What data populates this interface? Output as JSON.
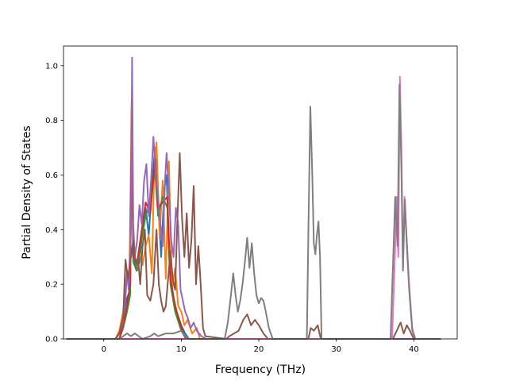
{
  "chart_data": {
    "type": "line",
    "xlabel": "Frequency (THz)",
    "ylabel": "Partial Density of States",
    "xlim": [
      -5.2,
      45.6
    ],
    "ylim": [
      0,
      1.072
    ],
    "xticks": [
      0,
      10,
      20,
      30,
      40
    ],
    "yticks": [
      0.0,
      0.2,
      0.4,
      0.6,
      0.8,
      1.0
    ],
    "xtick_labels": [
      "0",
      "10",
      "20",
      "30",
      "40"
    ],
    "ytick_labels": [
      "0.0",
      "0.2",
      "0.4",
      "0.6",
      "0.8",
      "1.0"
    ],
    "grid": false,
    "legend": "none",
    "series": [
      {
        "color": "#1f77b4",
        "points": [
          [
            -4.8,
            0
          ],
          [
            1.5,
            0
          ],
          [
            2.0,
            0.02
          ],
          [
            2.5,
            0.08
          ],
          [
            3.0,
            0.15
          ],
          [
            3.4,
            0.18
          ],
          [
            3.6,
            0.86
          ],
          [
            3.8,
            0.3
          ],
          [
            4.2,
            0.25
          ],
          [
            4.6,
            0.28
          ],
          [
            5.0,
            0.4
          ],
          [
            5.4,
            0.48
          ],
          [
            5.8,
            0.38
          ],
          [
            6.2,
            0.55
          ],
          [
            6.6,
            0.7
          ],
          [
            7.0,
            0.5
          ],
          [
            7.4,
            0.3
          ],
          [
            7.8,
            0.55
          ],
          [
            8.1,
            0.6
          ],
          [
            8.5,
            0.25
          ],
          [
            9.0,
            0.15
          ],
          [
            9.4,
            0.1
          ],
          [
            10.0,
            0.05
          ],
          [
            10.5,
            0.02
          ],
          [
            11.0,
            0.0
          ],
          [
            43.5,
            0
          ]
        ]
      },
      {
        "color": "#ff7f0e",
        "points": [
          [
            -4.8,
            0
          ],
          [
            1.5,
            0
          ],
          [
            2.0,
            0.03
          ],
          [
            2.5,
            0.1
          ],
          [
            3.0,
            0.24
          ],
          [
            3.3,
            0.22
          ],
          [
            3.6,
            0.88
          ],
          [
            3.8,
            0.32
          ],
          [
            4.2,
            0.28
          ],
          [
            4.6,
            0.32
          ],
          [
            5.0,
            0.27
          ],
          [
            5.4,
            0.34
          ],
          [
            5.8,
            0.38
          ],
          [
            6.2,
            0.24
          ],
          [
            6.5,
            0.62
          ],
          [
            6.8,
            0.72
          ],
          [
            7.2,
            0.38
          ],
          [
            7.6,
            0.58
          ],
          [
            8.0,
            0.22
          ],
          [
            8.4,
            0.65
          ],
          [
            8.8,
            0.18
          ],
          [
            9.2,
            0.26
          ],
          [
            9.6,
            0.12
          ],
          [
            10.0,
            0.1
          ],
          [
            10.4,
            0.05
          ],
          [
            10.8,
            0.07
          ],
          [
            11.4,
            0.02
          ],
          [
            12.0,
            0.04
          ],
          [
            12.4,
            0.0
          ],
          [
            43.5,
            0
          ]
        ]
      },
      {
        "color": "#2ca02c",
        "points": [
          [
            -4.8,
            0
          ],
          [
            2.0,
            0
          ],
          [
            2.5,
            0.04
          ],
          [
            3.0,
            0.1
          ],
          [
            3.4,
            0.16
          ],
          [
            3.6,
            0.8
          ],
          [
            3.8,
            0.28
          ],
          [
            4.3,
            0.25
          ],
          [
            4.8,
            0.35
          ],
          [
            5.4,
            0.45
          ],
          [
            6.0,
            0.5
          ],
          [
            6.6,
            0.62
          ],
          [
            7.0,
            0.45
          ],
          [
            7.6,
            0.52
          ],
          [
            8.2,
            0.48
          ],
          [
            8.6,
            0.2
          ],
          [
            9.2,
            0.1
          ],
          [
            10.0,
            0.03
          ],
          [
            10.6,
            0.0
          ],
          [
            43.5,
            0
          ]
        ]
      },
      {
        "color": "#d62728",
        "points": [
          [
            -4.8,
            0
          ],
          [
            2.0,
            0
          ],
          [
            2.5,
            0.05
          ],
          [
            3.0,
            0.12
          ],
          [
            3.4,
            0.2
          ],
          [
            3.6,
            0.84
          ],
          [
            3.8,
            0.3
          ],
          [
            4.3,
            0.28
          ],
          [
            4.8,
            0.38
          ],
          [
            5.4,
            0.5
          ],
          [
            6.0,
            0.46
          ],
          [
            6.6,
            0.66
          ],
          [
            7.0,
            0.48
          ],
          [
            7.6,
            0.5
          ],
          [
            8.2,
            0.52
          ],
          [
            8.6,
            0.22
          ],
          [
            9.2,
            0.12
          ],
          [
            10.0,
            0.04
          ],
          [
            10.6,
            0.0
          ],
          [
            43.5,
            0
          ]
        ]
      },
      {
        "color": "#9467bd",
        "points": [
          [
            -4.8,
            0
          ],
          [
            1.5,
            0
          ],
          [
            2.0,
            0.02
          ],
          [
            2.4,
            0.05
          ],
          [
            2.8,
            0.15
          ],
          [
            3.0,
            0.25
          ],
          [
            3.2,
            0.18
          ],
          [
            3.5,
            0.4
          ],
          [
            3.65,
            1.03
          ],
          [
            3.8,
            0.42
          ],
          [
            4.0,
            0.3
          ],
          [
            4.3,
            0.36
          ],
          [
            4.6,
            0.49
          ],
          [
            4.9,
            0.42
          ],
          [
            5.2,
            0.58
          ],
          [
            5.5,
            0.64
          ],
          [
            5.8,
            0.45
          ],
          [
            6.1,
            0.58
          ],
          [
            6.4,
            0.74
          ],
          [
            6.7,
            0.6
          ],
          [
            7.0,
            0.52
          ],
          [
            7.3,
            0.42
          ],
          [
            7.6,
            0.34
          ],
          [
            7.9,
            0.58
          ],
          [
            8.1,
            0.68
          ],
          [
            8.4,
            0.54
          ],
          [
            8.7,
            0.36
          ],
          [
            9.0,
            0.3
          ],
          [
            9.3,
            0.48
          ],
          [
            9.6,
            0.42
          ],
          [
            9.9,
            0.18
          ],
          [
            10.2,
            0.14
          ],
          [
            10.5,
            0.1
          ],
          [
            10.8,
            0.08
          ],
          [
            11.2,
            0.04
          ],
          [
            11.6,
            0.06
          ],
          [
            12.0,
            0.03
          ],
          [
            12.6,
            0.01
          ],
          [
            13.2,
            0.0
          ],
          [
            43.5,
            0
          ]
        ]
      },
      {
        "color": "#8c564b",
        "points": [
          [
            -4.8,
            0
          ],
          [
            1.5,
            0
          ],
          [
            2.0,
            0.02
          ],
          [
            2.5,
            0.08
          ],
          [
            2.8,
            0.29
          ],
          [
            3.1,
            0.22
          ],
          [
            3.5,
            0.3
          ],
          [
            3.8,
            0.36
          ],
          [
            4.1,
            0.26
          ],
          [
            4.4,
            0.3
          ],
          [
            4.7,
            0.2
          ],
          [
            5.0,
            0.34
          ],
          [
            5.3,
            0.4
          ],
          [
            5.6,
            0.16
          ],
          [
            6.0,
            0.14
          ],
          [
            6.4,
            0.2
          ],
          [
            6.8,
            0.4
          ],
          [
            7.1,
            0.2
          ],
          [
            7.4,
            0.14
          ],
          [
            7.7,
            0.1
          ],
          [
            8.0,
            0.12
          ],
          [
            8.3,
            0.22
          ],
          [
            8.6,
            0.32
          ],
          [
            8.9,
            0.22
          ],
          [
            9.2,
            0.18
          ],
          [
            9.5,
            0.44
          ],
          [
            9.8,
            0.68
          ],
          [
            10.1,
            0.44
          ],
          [
            10.4,
            0.3
          ],
          [
            10.7,
            0.46
          ],
          [
            11.0,
            0.26
          ],
          [
            11.3,
            0.36
          ],
          [
            11.6,
            0.56
          ],
          [
            11.9,
            0.2
          ],
          [
            12.2,
            0.34
          ],
          [
            12.5,
            0.2
          ],
          [
            12.8,
            0.04
          ],
          [
            13.1,
            0.01
          ],
          [
            15.8,
            0.0
          ],
          [
            16.2,
            0.01
          ],
          [
            16.8,
            0.02
          ],
          [
            17.4,
            0.03
          ],
          [
            18.0,
            0.07
          ],
          [
            18.5,
            0.09
          ],
          [
            19.0,
            0.05
          ],
          [
            19.5,
            0.07
          ],
          [
            20.0,
            0.05
          ],
          [
            20.6,
            0.02
          ],
          [
            21.2,
            0.0
          ],
          [
            26.4,
            0.0
          ],
          [
            26.7,
            0.04
          ],
          [
            27.1,
            0.03
          ],
          [
            27.6,
            0.05
          ],
          [
            28.0,
            0.0
          ],
          [
            37.3,
            0.0
          ],
          [
            37.8,
            0.03
          ],
          [
            38.3,
            0.06
          ],
          [
            38.7,
            0.02
          ],
          [
            39.1,
            0.05
          ],
          [
            39.5,
            0.03
          ],
          [
            40.0,
            0.0
          ],
          [
            43.5,
            0
          ]
        ]
      },
      {
        "color": "#e377c2",
        "points": [
          [
            -4.8,
            0
          ],
          [
            37.2,
            0
          ],
          [
            37.5,
            0.25
          ],
          [
            37.8,
            0.52
          ],
          [
            38.0,
            0.3
          ],
          [
            38.2,
            0.96
          ],
          [
            38.4,
            0.7
          ],
          [
            38.6,
            0.26
          ],
          [
            38.8,
            0.52
          ],
          [
            39.1,
            0.36
          ],
          [
            39.4,
            0.2
          ],
          [
            39.8,
            0.04
          ],
          [
            40.2,
            0.0
          ],
          [
            43.5,
            0
          ]
        ]
      },
      {
        "color": "#7f7f7f",
        "points": [
          [
            -4.8,
            0
          ],
          [
            2.0,
            0
          ],
          [
            2.5,
            0.01
          ],
          [
            3.0,
            0.02
          ],
          [
            3.5,
            0.01
          ],
          [
            4.0,
            0.02
          ],
          [
            4.5,
            0.01
          ],
          [
            5.0,
            0.0
          ],
          [
            6.0,
            0.01
          ],
          [
            6.5,
            0.02
          ],
          [
            7.0,
            0.01
          ],
          [
            8.0,
            0.02
          ],
          [
            9.0,
            0.02
          ],
          [
            10.0,
            0.03
          ],
          [
            10.5,
            0.01
          ],
          [
            11.0,
            0.0
          ],
          [
            15.6,
            0.0
          ],
          [
            16.0,
            0.06
          ],
          [
            16.4,
            0.16
          ],
          [
            16.7,
            0.24
          ],
          [
            17.0,
            0.16
          ],
          [
            17.3,
            0.1
          ],
          [
            17.6,
            0.14
          ],
          [
            17.9,
            0.2
          ],
          [
            18.2,
            0.28
          ],
          [
            18.5,
            0.37
          ],
          [
            18.8,
            0.26
          ],
          [
            19.1,
            0.35
          ],
          [
            19.4,
            0.24
          ],
          [
            19.7,
            0.16
          ],
          [
            20.0,
            0.13
          ],
          [
            20.3,
            0.15
          ],
          [
            20.6,
            0.14
          ],
          [
            20.9,
            0.1
          ],
          [
            21.3,
            0.04
          ],
          [
            21.8,
            0.0
          ],
          [
            26.2,
            0.0
          ],
          [
            26.4,
            0.4
          ],
          [
            26.65,
            0.85
          ],
          [
            26.9,
            0.6
          ],
          [
            27.1,
            0.35
          ],
          [
            27.3,
            0.31
          ],
          [
            27.5,
            0.38
          ],
          [
            27.7,
            0.43
          ],
          [
            27.9,
            0.3
          ],
          [
            28.1,
            0.0
          ],
          [
            37.0,
            0.0
          ],
          [
            37.3,
            0.26
          ],
          [
            37.6,
            0.52
          ],
          [
            37.9,
            0.34
          ],
          [
            38.15,
            0.93
          ],
          [
            38.4,
            0.62
          ],
          [
            38.6,
            0.25
          ],
          [
            38.85,
            0.51
          ],
          [
            39.1,
            0.34
          ],
          [
            39.4,
            0.18
          ],
          [
            39.8,
            0.03
          ],
          [
            40.2,
            0.0
          ],
          [
            43.5,
            0
          ]
        ]
      }
    ]
  }
}
